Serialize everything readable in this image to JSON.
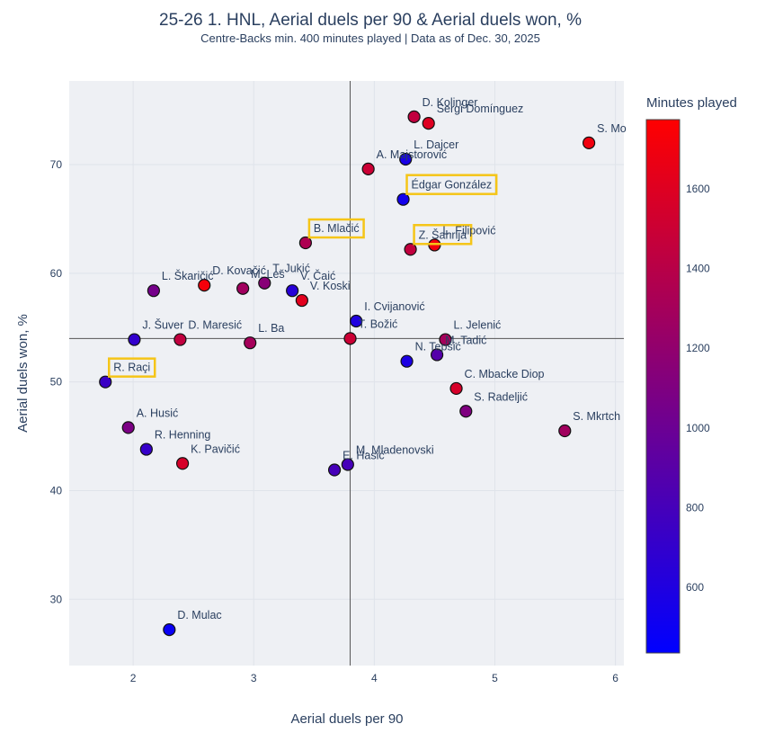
{
  "chart_data": {
    "type": "scatter",
    "title": "25-26 1. HNL, Aerial duels per 90 & Aerial duels won, %",
    "subtitle": "Centre-Backs min. 400 minutes played | Data as of Dec. 30, 2025",
    "xlabel": "Aerial duels per 90",
    "ylabel": "Aerial duels won, %",
    "xlim": [
      1.47,
      6.07
    ],
    "ylim": [
      23.9,
      77.7
    ],
    "xticks": [
      2,
      3,
      4,
      5,
      6
    ],
    "yticks": [
      30,
      40,
      50,
      60,
      70
    ],
    "grid": true,
    "reference_lines": {
      "x": 3.8,
      "y": 54.0
    },
    "colorbar": {
      "title": "Minutes played",
      "range": [
        435,
        1774
      ],
      "ticks": [
        600,
        800,
        1000,
        1200,
        1400,
        1600
      ],
      "colorscale": [
        "#0000ff",
        "#ff0000"
      ],
      "placement": "right"
    },
    "highlight_color": "#f5c518",
    "points": [
      {
        "name": "D. Kolinger",
        "x": 4.33,
        "y": 74.4,
        "minutes": 1450,
        "highlight": false
      },
      {
        "name": "Sergi Domínguez",
        "x": 4.45,
        "y": 73.8,
        "minutes": 1600,
        "highlight": false
      },
      {
        "name": "S. Mo",
        "x": 5.78,
        "y": 72.0,
        "minutes": 1700,
        "highlight": false
      },
      {
        "name": "L. Dajcer",
        "x": 4.26,
        "y": 70.5,
        "minutes": 560,
        "highlight": false
      },
      {
        "name": "A. Majstorović",
        "x": 3.95,
        "y": 69.6,
        "minutes": 1500,
        "highlight": false
      },
      {
        "name": "Édgar González",
        "x": 4.24,
        "y": 66.8,
        "minutes": 540,
        "highlight": true
      },
      {
        "name": "B. Mlačić",
        "x": 3.43,
        "y": 62.8,
        "minutes": 1350,
        "highlight": true
      },
      {
        "name": "Z. Šahrija",
        "x": 4.3,
        "y": 62.2,
        "minutes": 1450,
        "highlight": true
      },
      {
        "name": "L. Filipović",
        "x": 4.5,
        "y": 62.6,
        "minutes": 1700,
        "highlight": false
      },
      {
        "name": "L. Škaričić",
        "x": 2.17,
        "y": 58.4,
        "minutes": 1050,
        "highlight": false
      },
      {
        "name": "D. Kovačić",
        "x": 2.59,
        "y": 58.9,
        "minutes": 1720,
        "highlight": false
      },
      {
        "name": "M. Leš",
        "x": 2.91,
        "y": 58.6,
        "minutes": 1280,
        "highlight": false
      },
      {
        "name": "T. Jukić",
        "x": 3.09,
        "y": 59.1,
        "minutes": 1150,
        "highlight": false
      },
      {
        "name": "V. Čaić",
        "x": 3.32,
        "y": 58.4,
        "minutes": 640,
        "highlight": false
      },
      {
        "name": "V. Koski",
        "x": 3.4,
        "y": 57.5,
        "minutes": 1620,
        "highlight": false
      },
      {
        "name": "I. Cvijanović",
        "x": 3.85,
        "y": 55.6,
        "minutes": 600,
        "highlight": false
      },
      {
        "name": "T. Božić",
        "x": 3.8,
        "y": 54.0,
        "minutes": 1500,
        "highlight": false
      },
      {
        "name": "J. Šuver",
        "x": 2.01,
        "y": 53.9,
        "minutes": 700,
        "highlight": false
      },
      {
        "name": "D. Maresić",
        "x": 2.39,
        "y": 53.9,
        "minutes": 1450,
        "highlight": false
      },
      {
        "name": "L. Ba",
        "x": 2.97,
        "y": 53.6,
        "minutes": 1300,
        "highlight": false
      },
      {
        "name": "L. Jelenić",
        "x": 4.59,
        "y": 53.9,
        "minutes": 1300,
        "highlight": false
      },
      {
        "name": "M. Tadić",
        "x": 4.52,
        "y": 52.5,
        "minutes": 880,
        "highlight": false
      },
      {
        "name": "N. Tepšić",
        "x": 4.27,
        "y": 51.9,
        "minutes": 580,
        "highlight": false
      },
      {
        "name": "C. Mbacke Diop",
        "x": 4.68,
        "y": 49.4,
        "minutes": 1560,
        "highlight": false
      },
      {
        "name": "S. Radeljić",
        "x": 4.76,
        "y": 47.3,
        "minutes": 1100,
        "highlight": false
      },
      {
        "name": "S. Mkrtch",
        "x": 5.58,
        "y": 45.5,
        "minutes": 1280,
        "highlight": false
      },
      {
        "name": "R. Raçi",
        "x": 1.77,
        "y": 50.0,
        "minutes": 740,
        "highlight": true
      },
      {
        "name": "A. Husić",
        "x": 1.96,
        "y": 45.8,
        "minutes": 1080,
        "highlight": false
      },
      {
        "name": "R. Henning",
        "x": 2.11,
        "y": 43.8,
        "minutes": 720,
        "highlight": false
      },
      {
        "name": "K. Pavičić",
        "x": 2.41,
        "y": 42.5,
        "minutes": 1560,
        "highlight": false
      },
      {
        "name": "E. Hasić",
        "x": 3.67,
        "y": 41.9,
        "minutes": 800,
        "highlight": false
      },
      {
        "name": "M. Mladenovski",
        "x": 3.78,
        "y": 42.4,
        "minutes": 800,
        "highlight": false
      },
      {
        "name": "D. Mulac",
        "x": 2.3,
        "y": 27.2,
        "minutes": 480,
        "highlight": false
      }
    ]
  }
}
